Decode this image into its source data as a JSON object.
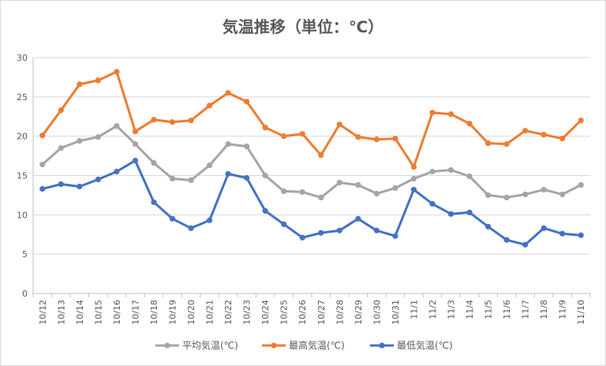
{
  "chart_data": {
    "type": "line",
    "title": "気温推移（単位：℃）",
    "xlabel": "",
    "ylabel": "",
    "ylim": [
      0,
      30
    ],
    "yticks": [
      0,
      5,
      10,
      15,
      20,
      25,
      30
    ],
    "grid": true,
    "legend_position": "bottom",
    "categories": [
      "10/12",
      "10/13",
      "10/14",
      "10/15",
      "10/16",
      "10/17",
      "10/18",
      "10/19",
      "10/20",
      "10/21",
      "10/22",
      "10/23",
      "10/24",
      "10/25",
      "10/26",
      "10/27",
      "10/28",
      "10/29",
      "10/30",
      "10/31",
      "11/1",
      "11/2",
      "11/3",
      "11/4",
      "11/5",
      "11/6",
      "11/7",
      "11/8",
      "11/9",
      "11/10"
    ],
    "series": [
      {
        "name": "平均気温(℃)",
        "color": "#a5a5a5",
        "values": [
          16.4,
          18.5,
          19.4,
          19.9,
          21.3,
          19.0,
          16.6,
          14.6,
          14.4,
          16.3,
          19.0,
          18.7,
          15.0,
          13.0,
          12.9,
          12.2,
          14.1,
          13.8,
          12.7,
          13.4,
          14.6,
          15.5,
          15.7,
          14.9,
          12.5,
          12.2,
          12.6,
          13.2,
          12.6,
          13.8
        ]
      },
      {
        "name": "最高気温(℃)",
        "color": "#ed7d31",
        "values": [
          20.1,
          23.3,
          26.6,
          27.1,
          28.2,
          20.6,
          22.1,
          21.8,
          22.0,
          23.9,
          25.5,
          24.4,
          21.1,
          20.0,
          20.3,
          17.6,
          21.5,
          19.9,
          19.6,
          19.7,
          16.1,
          23.0,
          22.8,
          21.6,
          19.1,
          19.0,
          20.7,
          20.2,
          19.7,
          22.0
        ]
      },
      {
        "name": "最低気温(℃)",
        "color": "#4472c4",
        "values": [
          13.3,
          13.9,
          13.6,
          14.5,
          15.5,
          16.9,
          11.6,
          9.5,
          8.3,
          9.3,
          15.2,
          14.7,
          10.5,
          8.8,
          7.1,
          7.7,
          8.0,
          9.5,
          8.0,
          7.3,
          13.2,
          11.4,
          10.1,
          10.3,
          8.5,
          6.8,
          6.2,
          8.3,
          7.6,
          7.4
        ]
      }
    ]
  }
}
